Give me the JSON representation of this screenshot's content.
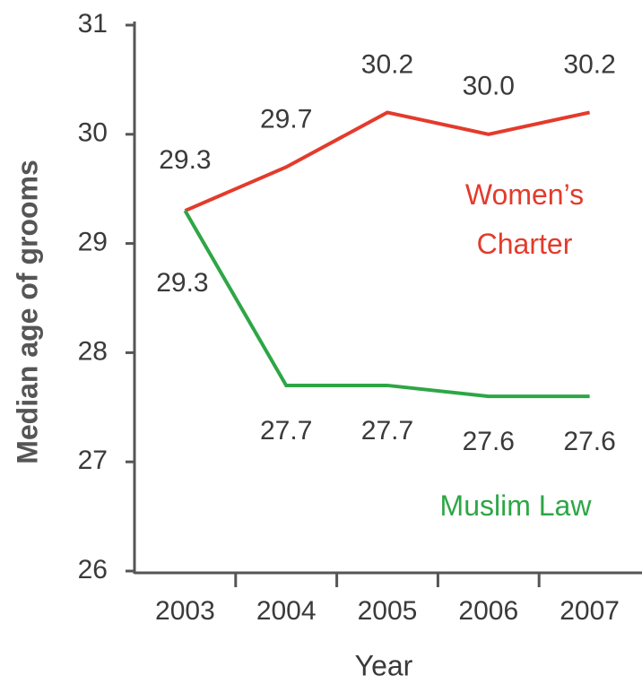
{
  "chart_data": {
    "type": "line",
    "x_label": "Year",
    "y_label": "Median age of grooms",
    "categories": [
      "2003",
      "2004",
      "2005",
      "2006",
      "2007"
    ],
    "series": [
      {
        "name": "Women’s Charter",
        "color": "#e33b2c",
        "values": [
          29.3,
          29.7,
          30.2,
          30.0,
          30.2
        ],
        "value_labels": [
          "29.3",
          "29.7",
          "30.2",
          "30.0",
          "30.2"
        ]
      },
      {
        "name": "Muslim Law",
        "color": "#2ea646",
        "values": [
          29.3,
          27.7,
          27.7,
          27.6,
          27.6
        ],
        "value_labels": [
          "29.3",
          "27.7",
          "27.7",
          "27.6",
          "27.6"
        ]
      }
    ],
    "ylim": [
      26,
      31
    ],
    "yticks": [
      26,
      27,
      28,
      29,
      30,
      31
    ]
  }
}
